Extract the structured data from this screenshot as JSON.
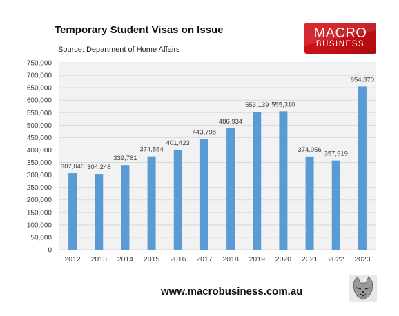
{
  "header": {
    "title": "Temporary Student Visas on Issue",
    "source": "Source: Department of Home Affairs"
  },
  "logo": {
    "line1": "MACRO",
    "line2": "BUSINESS",
    "color": "#c81016"
  },
  "footer": {
    "website": "www.macrobusiness.com.au",
    "mascot_icon": "wolf-mascot-icon"
  },
  "colors": {
    "bar": "#5b9bd5",
    "plot_background": "#f2f2f2",
    "gridline": "#d9d9d9",
    "text": "#404040"
  },
  "chart_data": {
    "type": "bar",
    "title": "Temporary Student Visas on Issue",
    "xlabel": "",
    "ylabel": "",
    "categories": [
      "2012",
      "2013",
      "2014",
      "2015",
      "2016",
      "2017",
      "2018",
      "2019",
      "2020",
      "2021",
      "2022",
      "2023"
    ],
    "values": [
      307045,
      304248,
      339761,
      374564,
      401423,
      443798,
      486934,
      553139,
      555310,
      374056,
      357919,
      654870
    ],
    "value_labels": [
      "307,045",
      "304,248",
      "339,761",
      "374,564",
      "401,423",
      "443,798",
      "486,934",
      "553,139",
      "555,310",
      "374,056",
      "357,919",
      "654,870"
    ],
    "ylim": [
      0,
      750000
    ],
    "y_ticks": [
      0,
      50000,
      100000,
      150000,
      200000,
      250000,
      300000,
      350000,
      400000,
      450000,
      500000,
      550000,
      600000,
      650000,
      700000,
      750000
    ],
    "y_tick_labels": [
      "0",
      "50,000",
      "100,000",
      "150,000",
      "200,000",
      "250,000",
      "300,000",
      "350,000",
      "400,000",
      "450,000",
      "500,000",
      "550,000",
      "600,000",
      "650,000",
      "700,000",
      "750,000"
    ],
    "grid": true,
    "legend": "none"
  }
}
